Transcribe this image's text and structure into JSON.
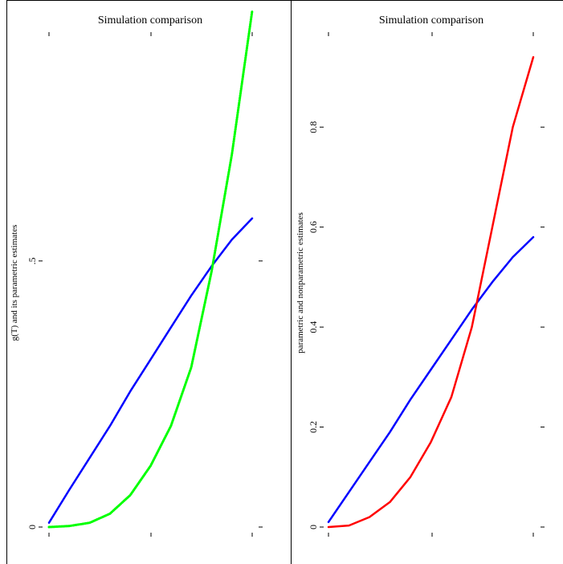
{
  "chart_data": [
    {
      "type": "line",
      "title": "Simulation comparison",
      "xlabel": "",
      "ylabel": "g(T) and its parametric estimates",
      "ylim": [
        0,
        0.93
      ],
      "yticks": [
        0,
        0.5
      ],
      "ytick_labels": [
        "0",
        ".5"
      ],
      "xlim": [
        0,
        1
      ],
      "grid": false,
      "series": [
        {
          "color": "#0000ff",
          "style": "solid",
          "x": [
            0,
            0.1,
            0.2,
            0.3,
            0.4,
            0.5,
            0.6,
            0.7,
            0.8,
            0.9,
            1
          ],
          "values": [
            0.008,
            0.07,
            0.13,
            0.19,
            0.255,
            0.315,
            0.375,
            0.435,
            0.49,
            0.54,
            0.58
          ]
        },
        {
          "color": "#00ff00",
          "style": "dotted",
          "x": [
            0,
            0.1,
            0.2,
            0.3,
            0.4,
            0.5,
            0.6,
            0.7,
            0.8,
            0.9,
            1
          ],
          "values": [
            0,
            0.002,
            0.008,
            0.025,
            0.06,
            0.115,
            0.19,
            0.3,
            0.48,
            0.7,
            0.97
          ]
        }
      ]
    },
    {
      "type": "line",
      "title": "Simulation comparison",
      "xlabel": "",
      "ylabel": "parametric and nonparametric estimates",
      "ylim": [
        0,
        0.99
      ],
      "yticks": [
        0,
        0.2,
        0.4,
        0.6,
        0.8
      ],
      "ytick_labels": [
        "0",
        "0.2",
        "0.4",
        "0.6",
        "0.8"
      ],
      "xlim": [
        0,
        1
      ],
      "grid": false,
      "series": [
        {
          "color": "#0000ff",
          "style": "solid",
          "x": [
            0,
            0.1,
            0.2,
            0.3,
            0.4,
            0.5,
            0.6,
            0.7,
            0.8,
            0.9,
            1
          ],
          "values": [
            0.01,
            0.07,
            0.13,
            0.19,
            0.255,
            0.315,
            0.375,
            0.435,
            0.49,
            0.54,
            0.58
          ]
        },
        {
          "color": "#ff0000",
          "style": "solid",
          "x": [
            0,
            0.1,
            0.2,
            0.3,
            0.4,
            0.5,
            0.6,
            0.7,
            0.8,
            0.9,
            1
          ],
          "values": [
            0,
            0.003,
            0.02,
            0.05,
            0.1,
            0.17,
            0.26,
            0.4,
            0.6,
            0.8,
            0.94
          ]
        }
      ]
    }
  ]
}
